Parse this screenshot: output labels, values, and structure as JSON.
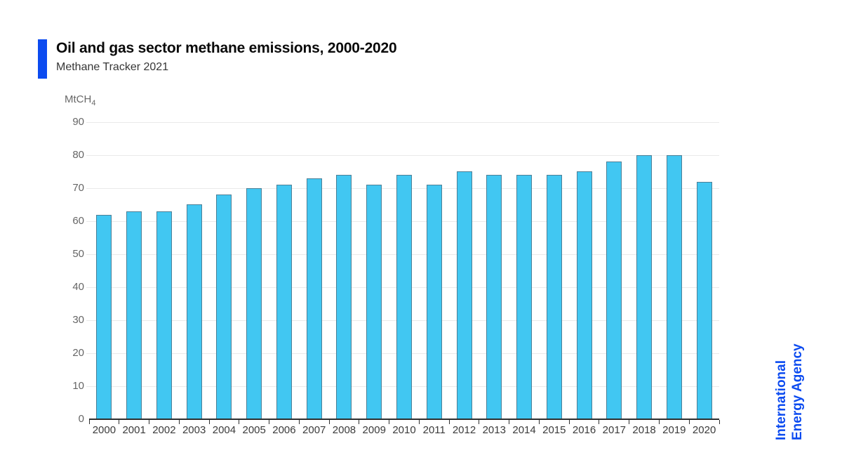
{
  "header": {
    "title": "Oil and gas sector methane emissions, 2000-2020",
    "subtitle": "Methane Tracker 2021"
  },
  "branding": {
    "logo_line1": "International",
    "logo_line2": "Energy Agency",
    "brand_blue": "#0c4bf0"
  },
  "chart_data": {
    "type": "bar",
    "title": "Oil and gas sector methane emissions, 2000-2020",
    "subtitle": "Methane Tracker 2021",
    "unit_main": "MtCH",
    "unit_sub": "4",
    "ylabel": "MtCH4",
    "xlabel": "",
    "categories": [
      "2000",
      "2001",
      "2002",
      "2003",
      "2004",
      "2005",
      "2006",
      "2007",
      "2008",
      "2009",
      "2010",
      "2011",
      "2012",
      "2013",
      "2014",
      "2015",
      "2016",
      "2017",
      "2018",
      "2019",
      "2020"
    ],
    "values": [
      62,
      63,
      63,
      65,
      68,
      70,
      71,
      73,
      74,
      71,
      74,
      71,
      75,
      74,
      74,
      74,
      75,
      78,
      80,
      80,
      72
    ],
    "ylim": [
      0,
      90
    ],
    "ytick_step": 10,
    "grid": "horizontal",
    "legend": "none",
    "colors": {
      "bar_fill": "#41c7f2",
      "bar_border": "#4c7f96",
      "gridline": "#e9e9e9",
      "axis": "#2e2e2e",
      "ytick_label": "#666666",
      "xtick_label": "#3b3b3b"
    }
  }
}
